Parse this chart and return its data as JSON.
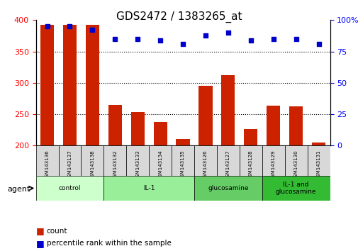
{
  "title": "GDS2472 / 1383265_at",
  "samples": [
    "GSM143136",
    "GSM143137",
    "GSM143138",
    "GSM143132",
    "GSM143133",
    "GSM143134",
    "GSM143135",
    "GSM143126",
    "GSM143127",
    "GSM143128",
    "GSM143129",
    "GSM143130",
    "GSM143131"
  ],
  "counts": [
    393,
    393,
    393,
    265,
    254,
    238,
    211,
    295,
    312,
    226,
    264,
    262,
    205
  ],
  "percentile_ranks": [
    95,
    95,
    92,
    85,
    85,
    84,
    81,
    88,
    90,
    84,
    85,
    85,
    81
  ],
  "groups": [
    {
      "label": "control",
      "start": 0,
      "end": 3,
      "color": "#ccffcc"
    },
    {
      "label": "IL-1",
      "start": 3,
      "end": 7,
      "color": "#99ee99"
    },
    {
      "label": "glucosamine",
      "start": 7,
      "end": 10,
      "color": "#66cc66"
    },
    {
      "label": "IL-1 and\nglucosamine",
      "start": 10,
      "end": 13,
      "color": "#33bb33"
    }
  ],
  "bar_color": "#cc2200",
  "dot_color": "#0000cc",
  "ylim_left": [
    200,
    400
  ],
  "ylim_right": [
    0,
    100
  ],
  "yticks_left": [
    200,
    250,
    300,
    350,
    400
  ],
  "yticks_right": [
    0,
    25,
    50,
    75,
    100
  ],
  "grid_dotted": true,
  "bar_width": 0.6,
  "agent_label": "agent",
  "legend_count_label": "count",
  "legend_pct_label": "percentile rank within the sample",
  "background_color": "#ffffff",
  "tick_area_color": "#dddddd"
}
